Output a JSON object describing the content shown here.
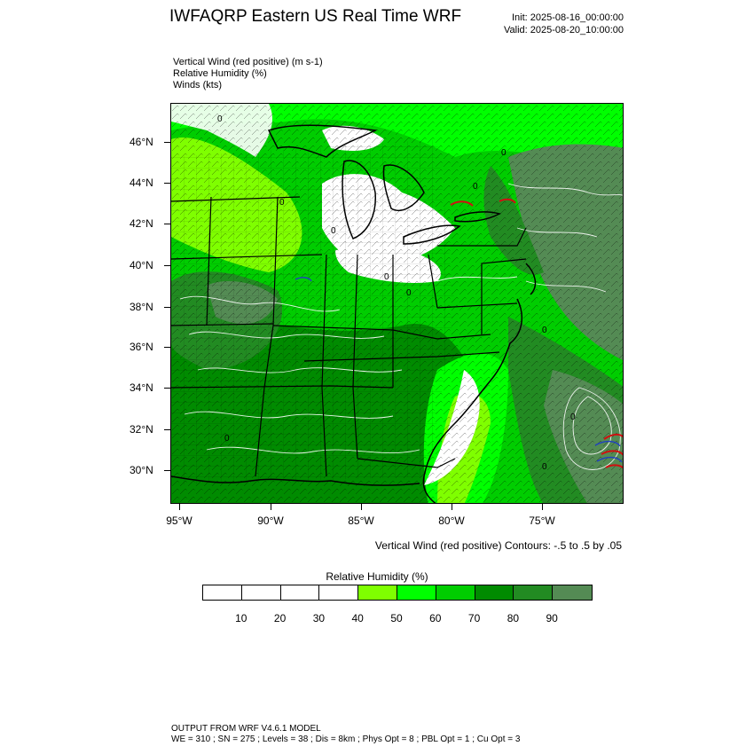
{
  "header": {
    "title": "IWFAQRP Eastern US Real Time WRF",
    "init": "Init: 2025-08-16_00:00:00",
    "valid": "Valid: 2025-08-20_10:00:00"
  },
  "fields": {
    "line1": "Vertical Wind (red positive)   (m s-1)",
    "line2": "Relative Humidity   (%)",
    "line3": "Winds   (kts)"
  },
  "map": {
    "lat_labels": [
      "46°N",
      "44°N",
      "42°N",
      "40°N",
      "38°N",
      "36°N",
      "34°N",
      "32°N",
      "30°N"
    ],
    "lon_labels": [
      "95°W",
      "90°W",
      "85°W",
      "80°W",
      "75°W"
    ],
    "contour_labels": [
      "0",
      "0",
      "0",
      "0",
      "0",
      "0",
      "0",
      "0",
      "0",
      "0",
      "0"
    ],
    "colors": {
      "white": "#ffffff",
      "rh40": "#7fff00",
      "rh50": "#00ff00",
      "rh60": "#00cd00",
      "rh70": "#008b00",
      "rh80": "#228b22",
      "rh90": "#548b54",
      "boundary": "#000000",
      "updraft": "#d01010",
      "downdraft": "#2040c0"
    }
  },
  "contour_note": "Vertical Wind (red positive) Contours: -.5 to .5 by .05",
  "colorbar": {
    "title": "Relative Humidity  (%)",
    "colors": [
      "#ffffff",
      "#ffffff",
      "#ffffff",
      "#ffffff",
      "#7fff00",
      "#00ff00",
      "#00cd00",
      "#008b00",
      "#228b22",
      "#548b54"
    ],
    "ticks": [
      "10",
      "20",
      "30",
      "40",
      "50",
      "60",
      "70",
      "80",
      "90"
    ]
  },
  "footer": {
    "line1": "OUTPUT FROM WRF V4.6.1 MODEL",
    "line2": "WE = 310 ; SN = 275 ; Levels = 38 ; Dis = 8km ; Phys Opt = 8 ; PBL Opt = 1 ; Cu Opt = 3"
  }
}
